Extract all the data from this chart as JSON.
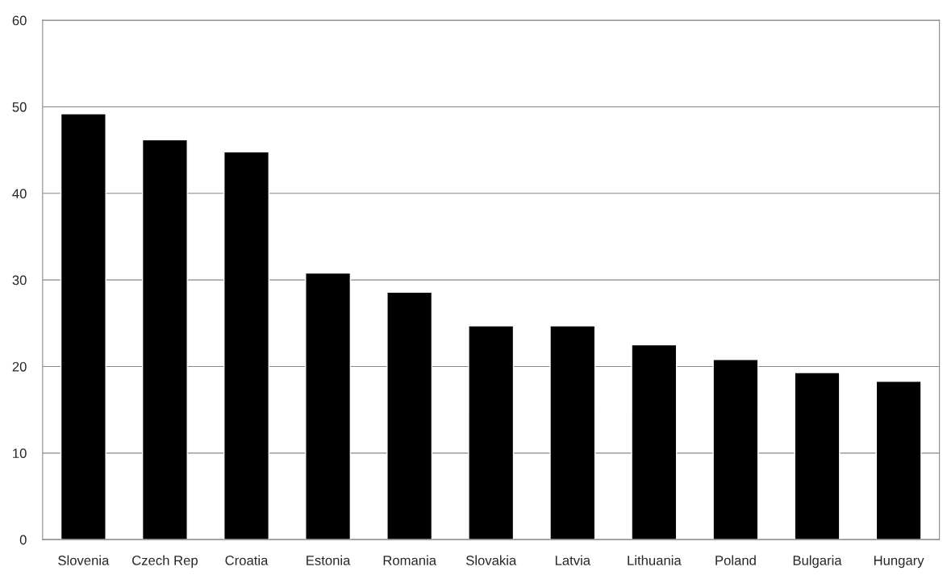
{
  "chart_data": {
    "type": "bar",
    "categories": [
      "Slovenia",
      "Czech Rep",
      "Croatia",
      "Estonia",
      "Romania",
      "Slovakia",
      "Latvia",
      "Lithuania",
      "Poland",
      "Bulgaria",
      "Hungary"
    ],
    "values": [
      49.2,
      46.2,
      44.8,
      30.8,
      28.6,
      24.7,
      24.7,
      22.5,
      20.8,
      19.3,
      18.3
    ],
    "color": "#000000",
    "ylim": [
      0,
      60
    ],
    "yticks": [
      0,
      10,
      20,
      30,
      40,
      50,
      60
    ],
    "grid": "y"
  }
}
